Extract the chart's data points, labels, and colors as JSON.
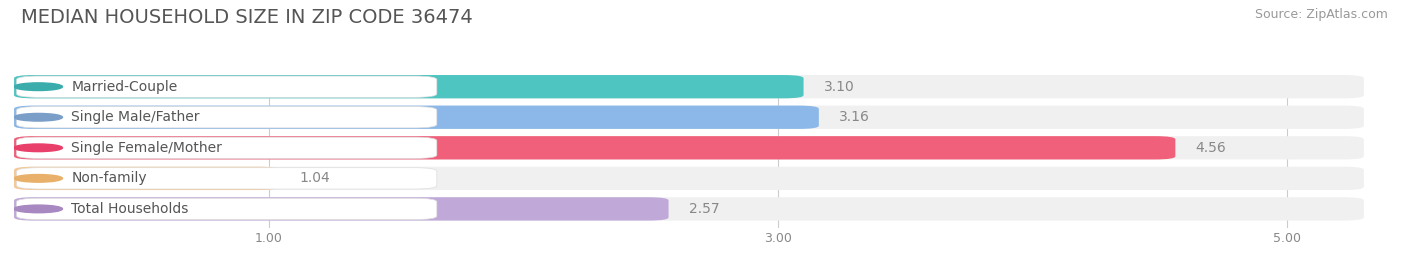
{
  "title": "MEDIAN HOUSEHOLD SIZE IN ZIP CODE 36474",
  "source": "Source: ZipAtlas.com",
  "categories": [
    "Married-Couple",
    "Single Male/Father",
    "Single Female/Mother",
    "Non-family",
    "Total Households"
  ],
  "values": [
    3.1,
    3.16,
    4.56,
    1.04,
    2.57
  ],
  "bar_colors": [
    "#4EC5C1",
    "#8BB8E8",
    "#F0607A",
    "#F5C896",
    "#C0A8D8"
  ],
  "label_dot_colors": [
    "#3AACAC",
    "#7A9EC8",
    "#E8406A",
    "#E8B06A",
    "#A888C0"
  ],
  "xlim": [
    0,
    5.3
  ],
  "xmin": 0,
  "xticks": [
    1.0,
    3.0,
    5.0
  ],
  "value_label_color": "#888888",
  "background_color": "#ffffff",
  "bar_bg_color": "#f0f0f0",
  "title_fontsize": 14,
  "source_fontsize": 9,
  "label_fontsize": 10,
  "value_fontsize": 10,
  "title_color": "#555555",
  "label_color": "#555555"
}
